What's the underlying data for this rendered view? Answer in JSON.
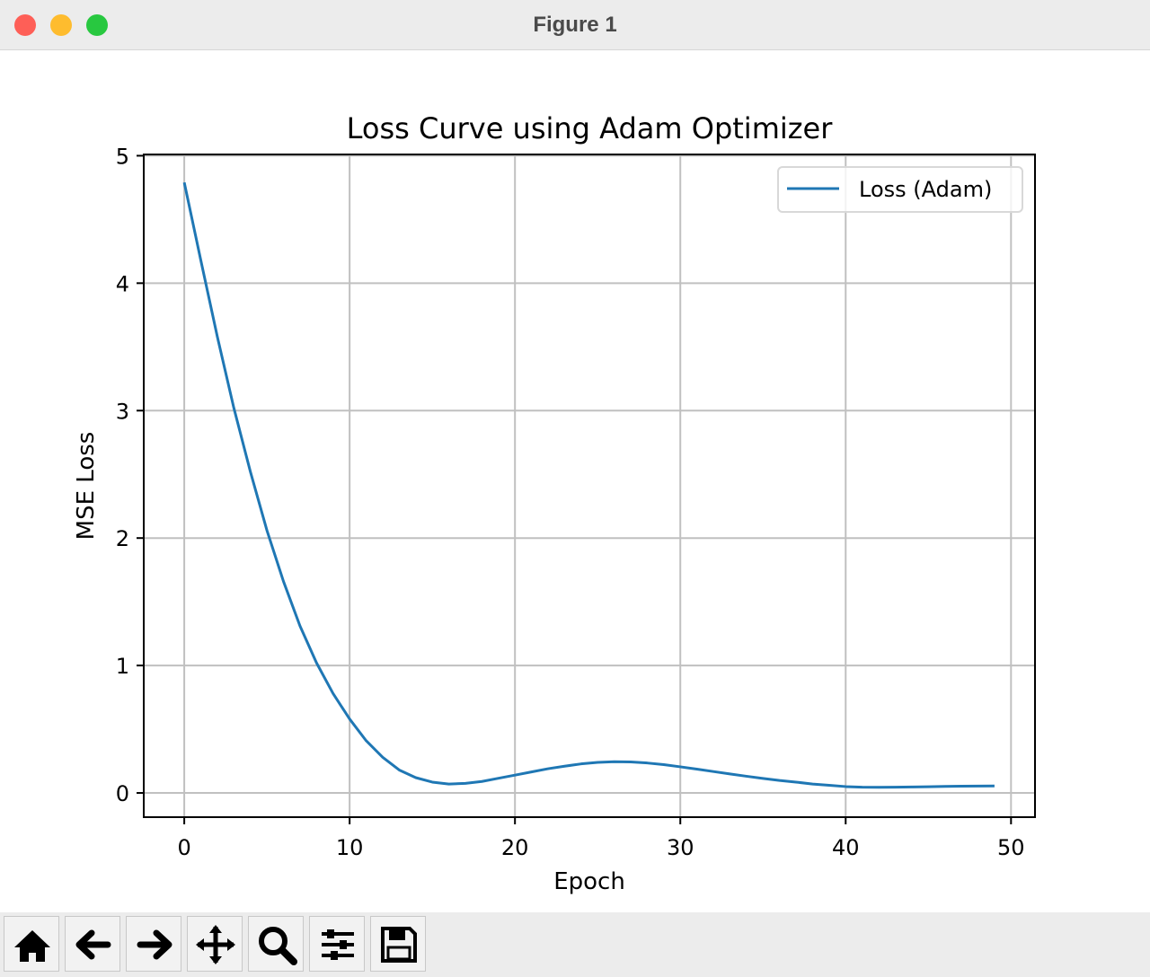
{
  "window": {
    "title": "Figure 1"
  },
  "chart_data": {
    "type": "line",
    "title": "Loss Curve using Adam Optimizer",
    "x_label": "Epoch",
    "y_label": "MSE Loss",
    "x": [
      0,
      1,
      2,
      3,
      4,
      5,
      6,
      7,
      8,
      9,
      10,
      11,
      12,
      13,
      14,
      15,
      16,
      17,
      18,
      19,
      20,
      21,
      22,
      23,
      24,
      25,
      26,
      27,
      28,
      29,
      30,
      31,
      32,
      33,
      34,
      35,
      36,
      37,
      38,
      39,
      40,
      41,
      42,
      43,
      44,
      45,
      46,
      47,
      48,
      49
    ],
    "series": [
      {
        "name": "Loss (Adam)",
        "color": "#1f77b4",
        "values": [
          4.79,
          4.18,
          3.58,
          3.02,
          2.52,
          2.06,
          1.66,
          1.31,
          1.02,
          0.78,
          0.58,
          0.41,
          0.28,
          0.18,
          0.12,
          0.085,
          0.07,
          0.075,
          0.09,
          0.115,
          0.14,
          0.165,
          0.19,
          0.21,
          0.228,
          0.24,
          0.245,
          0.243,
          0.235,
          0.222,
          0.205,
          0.187,
          0.168,
          0.149,
          0.131,
          0.114,
          0.098,
          0.085,
          0.07,
          0.06,
          0.05,
          0.045,
          0.044,
          0.045,
          0.047,
          0.049,
          0.051,
          0.053,
          0.054,
          0.055
        ]
      }
    ],
    "xlim": [
      -2.45,
      51.45
    ],
    "ylim": [
      -0.19,
      5.01
    ],
    "xticks": [
      0,
      10,
      20,
      30,
      40,
      50
    ],
    "yticks": [
      0,
      1,
      2,
      3,
      4,
      5
    ],
    "grid": true,
    "legend": "upper right"
  }
}
